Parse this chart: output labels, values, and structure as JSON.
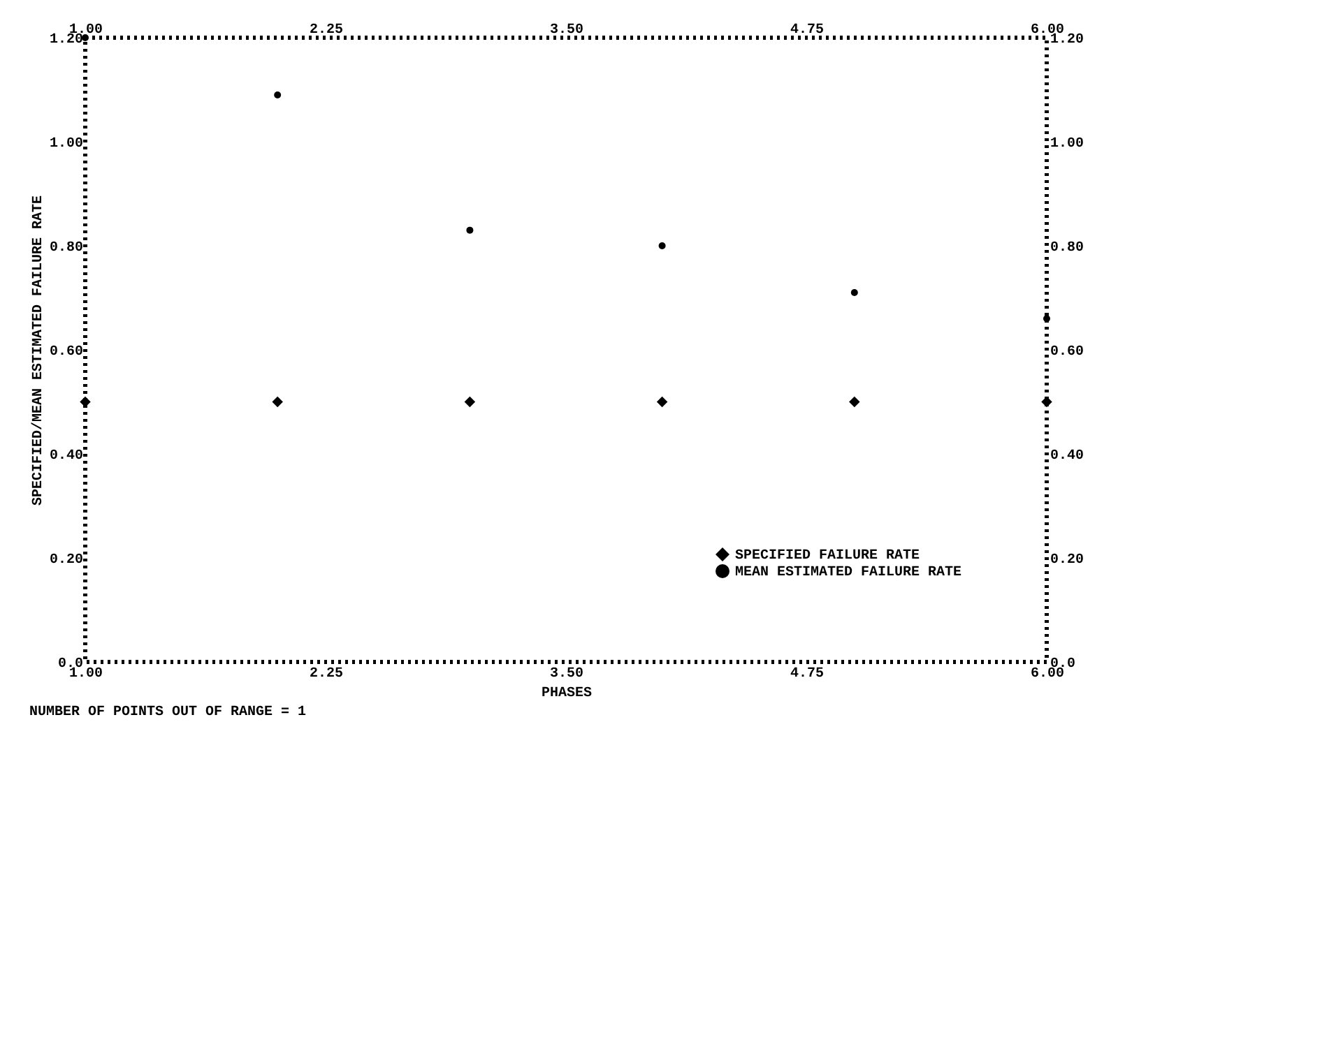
{
  "chart_data": {
    "type": "scatter",
    "xlabel": "PHASES",
    "ylabel": "SPECIFIED/MEAN ESTIMATED FAILURE RATE",
    "x": [
      1,
      2,
      3,
      4,
      5,
      6
    ],
    "series": [
      {
        "name": "SPECIFIED FAILURE RATE",
        "color": "#000000",
        "marker": "diamond",
        "values": [
          0.5,
          0.5,
          0.5,
          0.5,
          0.5,
          0.5
        ]
      },
      {
        "name": "MEAN ESTIMATED FAILURE RATE",
        "color": "#000000",
        "marker": "circle",
        "values": [
          1.2,
          1.09,
          0.83,
          0.8,
          0.71,
          0.66
        ]
      }
    ],
    "xlim": [
      1,
      6
    ],
    "xticks": [
      {
        "value": 1,
        "label": "1.00"
      },
      2.25,
      {
        "value": 3.5,
        "label": "3.50"
      },
      4.75,
      {
        "value": 6,
        "label": "6.00"
      }
    ],
    "x2lim": [
      1,
      6
    ],
    "x2ticks": [
      {
        "value": 1,
        "label": "1.00"
      },
      2.25,
      {
        "value": 3.5,
        "label": "3.50"
      },
      4.75,
      {
        "value": 6,
        "label": "6.00"
      }
    ],
    "ylim": [
      0,
      1.2
    ],
    "yticks": [
      {
        "value": 0,
        "label": "0.0"
      },
      {
        "value": 0.2,
        "label": "0.20"
      },
      {
        "value": 0.4,
        "label": "0.40"
      },
      {
        "value": 0.6,
        "label": "0.60"
      },
      {
        "value": 0.8,
        "label": "0.80"
      },
      {
        "value": 1.0,
        "label": "1.00"
      },
      {
        "value": 1.2,
        "label": "1.20"
      }
    ],
    "y2lim": [
      0,
      1.2
    ],
    "y2ticks": [
      {
        "value": 0,
        "label": "0.0"
      },
      {
        "value": 0.2,
        "label": "0.20"
      },
      {
        "value": 0.4,
        "label": "0.40"
      },
      {
        "value": 0.6,
        "label": "0.60"
      },
      {
        "value": 0.8,
        "label": "0.80"
      },
      {
        "value": 1.0,
        "label": "1.00"
      },
      {
        "value": 1.2,
        "label": "1.20"
      }
    ],
    "annotations": [
      "NUMBER OF POINTS OUT OF RANGE = 1"
    ],
    "legend": "bottom right",
    "grid": false
  }
}
